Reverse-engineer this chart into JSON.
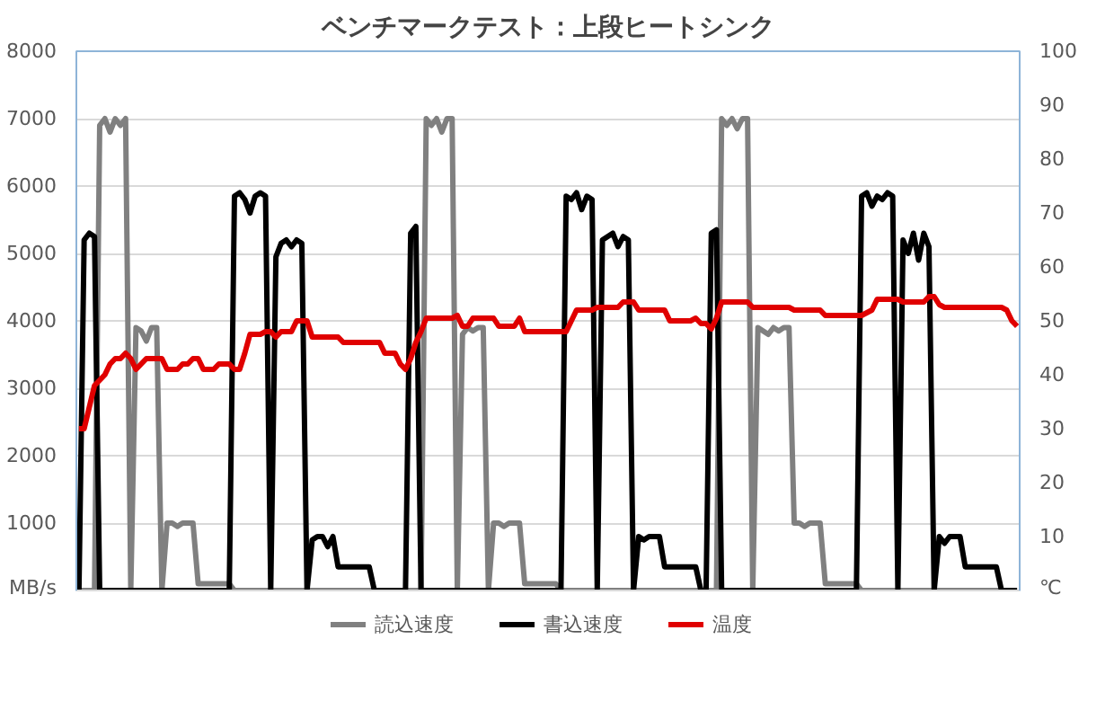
{
  "chart_data": {
    "type": "line",
    "title": "ベンチマークテスト：上段ヒートシンク",
    "categories": [
      null,
      null,
      null,
      null,
      null,
      null,
      null,
      null,
      null,
      null,
      null,
      null,
      null,
      null,
      null,
      null,
      null,
      null,
      null,
      null,
      null,
      null,
      null,
      null,
      null,
      null,
      null,
      null,
      null,
      null,
      null,
      null,
      null,
      null,
      null,
      null,
      null,
      null,
      null,
      null,
      null,
      null,
      null,
      null,
      null,
      null,
      null,
      null,
      null,
      null,
      null,
      null,
      null,
      null,
      null,
      null,
      null,
      null,
      null,
      null,
      null,
      null,
      null,
      null,
      null,
      null,
      null,
      null,
      null,
      null,
      null,
      null,
      null,
      null,
      null,
      null,
      null,
      null,
      null,
      null,
      null,
      null,
      null,
      null,
      null,
      null,
      null,
      null,
      null,
      null,
      null,
      null,
      null,
      null,
      null,
      null,
      null,
      null,
      null,
      null,
      null,
      null,
      null,
      null,
      null,
      null,
      null,
      null,
      null,
      null,
      null,
      null,
      null,
      null,
      null,
      null,
      null,
      null,
      null,
      null,
      null,
      null,
      null,
      null,
      null,
      null,
      null,
      null,
      null,
      null,
      null,
      null,
      null,
      null,
      null,
      null,
      null,
      null,
      null,
      null,
      null,
      null,
      null,
      null,
      null,
      null,
      null,
      null,
      null,
      null,
      null,
      null,
      null,
      null,
      null,
      null,
      null,
      null,
      null,
      null,
      null,
      null,
      null,
      null,
      null,
      null,
      null,
      null,
      null,
      null,
      null,
      null,
      null,
      null,
      null,
      null,
      null,
      null,
      null,
      null,
      null,
      null
    ],
    "series": [
      {
        "name": "読込速度",
        "color": "#808080",
        "values": [
          0,
          0,
          0,
          0,
          6900,
          7000,
          6800,
          7000,
          6900,
          7000,
          0,
          3900,
          3850,
          3700,
          3900,
          3900,
          0,
          1000,
          1000,
          950,
          1000,
          1000,
          1000,
          100,
          100,
          100,
          100,
          100,
          100,
          100,
          0,
          0,
          0,
          0,
          0,
          0,
          0,
          0,
          0,
          0,
          0,
          0,
          0,
          0,
          0,
          0,
          0,
          0,
          0,
          0,
          0,
          0,
          0,
          0,
          0,
          0,
          0,
          0,
          0,
          0,
          0,
          0,
          0,
          0,
          0,
          0,
          0,
          7000,
          6900,
          7000,
          6800,
          7000,
          7000,
          0,
          3800,
          3900,
          3850,
          3900,
          3900,
          0,
          1000,
          1000,
          950,
          1000,
          1000,
          1000,
          100,
          100,
          100,
          100,
          100,
          100,
          100,
          0,
          0,
          0,
          0,
          0,
          0,
          0,
          0,
          0,
          0,
          0,
          0,
          0,
          0,
          0,
          0,
          0,
          0,
          0,
          0,
          0,
          0,
          0,
          0,
          0,
          0,
          0,
          0,
          0,
          0,
          0,
          7000,
          6900,
          7000,
          6850,
          7000,
          7000,
          0,
          3900,
          3850,
          3800,
          3900,
          3850,
          3900,
          3900,
          1000,
          1000,
          950,
          1000,
          1000,
          1000,
          100,
          100,
          100,
          100,
          100,
          100,
          100,
          0,
          0,
          0,
          0,
          0,
          0,
          0,
          0,
          0,
          0,
          0,
          0,
          0,
          0,
          0,
          0,
          0,
          0,
          0,
          0,
          0,
          0,
          0,
          0,
          0,
          0,
          0,
          0,
          0,
          0,
          0
        ]
      },
      {
        "name": "書込速度",
        "color": "#000000",
        "values": [
          0,
          5200,
          5300,
          5250,
          0,
          0,
          0,
          0,
          0,
          0,
          0,
          0,
          0,
          0,
          0,
          0,
          0,
          0,
          0,
          0,
          0,
          0,
          0,
          0,
          0,
          0,
          0,
          0,
          0,
          0,
          5850,
          5900,
          5800,
          5600,
          5850,
          5900,
          5850,
          0,
          4950,
          5150,
          5200,
          5100,
          5200,
          5150,
          0,
          750,
          800,
          800,
          650,
          800,
          350,
          350,
          350,
          350,
          350,
          350,
          350,
          0,
          0,
          0,
          0,
          0,
          0,
          0,
          5300,
          5400,
          0,
          0,
          0,
          0,
          0,
          0,
          0,
          0,
          0,
          0,
          0,
          0,
          0,
          0,
          0,
          0,
          0,
          0,
          0,
          0,
          0,
          0,
          0,
          0,
          0,
          0,
          0,
          0,
          5850,
          5800,
          5900,
          5650,
          5850,
          5800,
          0,
          5200,
          5250,
          5300,
          5100,
          5250,
          5200,
          0,
          800,
          750,
          800,
          800,
          800,
          350,
          350,
          350,
          350,
          350,
          350,
          350,
          0,
          0,
          5300,
          5350,
          0,
          0,
          0,
          0,
          0,
          0,
          0,
          0,
          0,
          0,
          0,
          0,
          0,
          0,
          0,
          0,
          0,
          0,
          0,
          0,
          0,
          0,
          0,
          0,
          0,
          0,
          0,
          5850,
          5900,
          5700,
          5850,
          5800,
          5900,
          5850,
          0,
          5200,
          5000,
          5300,
          4900,
          5300,
          5100,
          0,
          800,
          700,
          800,
          800,
          800,
          350,
          350,
          350,
          350,
          350,
          350,
          350,
          0,
          0,
          0,
          0
        ]
      },
      {
        "name": "温度",
        "color": "#e00000",
        "axis": "y2",
        "values": [
          30,
          30,
          34,
          38,
          39,
          40,
          42,
          43,
          43,
          44,
          43,
          41,
          42,
          43,
          43,
          43,
          43,
          41,
          41,
          41,
          42,
          42,
          43,
          43,
          41,
          41,
          41,
          42,
          42,
          42,
          41,
          41,
          44,
          47.5,
          47.5,
          47.5,
          48,
          48,
          47,
          48,
          48,
          48,
          50,
          50,
          50,
          47,
          47,
          47,
          47,
          47,
          47,
          46,
          46,
          46,
          46,
          46,
          46,
          46,
          46,
          44,
          44,
          44,
          42,
          41,
          43,
          46,
          48,
          50.5,
          50.5,
          50.5,
          50.5,
          50.5,
          50.5,
          51,
          49,
          49,
          50.5,
          50.5,
          50.5,
          50.5,
          50.5,
          49,
          49,
          49,
          49,
          50.5,
          48,
          48,
          48,
          48,
          48,
          48,
          48,
          48,
          48,
          50,
          52,
          52,
          52,
          52,
          52.5,
          52.5,
          52.5,
          52.5,
          52.5,
          53.5,
          53.5,
          53.5,
          52,
          52,
          52,
          52,
          52,
          52,
          50,
          50,
          50,
          50,
          50,
          50.5,
          49.5,
          49.5,
          48.5,
          50.5,
          53.5,
          53.5,
          53.5,
          53.5,
          53.5,
          53.5,
          52.5,
          52.5,
          52.5,
          52.5,
          52.5,
          52.5,
          52.5,
          52.5,
          52,
          52,
          52,
          52,
          52,
          52,
          51,
          51,
          51,
          51,
          51,
          51,
          51,
          51,
          51.5,
          52,
          54,
          54,
          54,
          54,
          54,
          53.5,
          53.5,
          53.5,
          53.5,
          53.5,
          54.5,
          54.5,
          53,
          52.5,
          52.5,
          52.5,
          52.5,
          52.5,
          52.5,
          52.5,
          52.5,
          52.5,
          52.5,
          52.5,
          52.5,
          52,
          50,
          49
        ]
      }
    ],
    "ylim": [
      0,
      8000
    ],
    "yticks": [
      {
        "value": 0,
        "label": "MB/s"
      },
      1000,
      2000,
      3000,
      4000,
      5000,
      6000,
      7000,
      8000
    ],
    "y2lim": [
      0,
      100
    ],
    "y2ticks": [
      {
        "value": 0,
        "label": "℃"
      },
      10,
      20,
      30,
      40,
      50,
      60,
      70,
      80,
      90,
      100
    ],
    "grid": "y",
    "legend": "bottom"
  }
}
